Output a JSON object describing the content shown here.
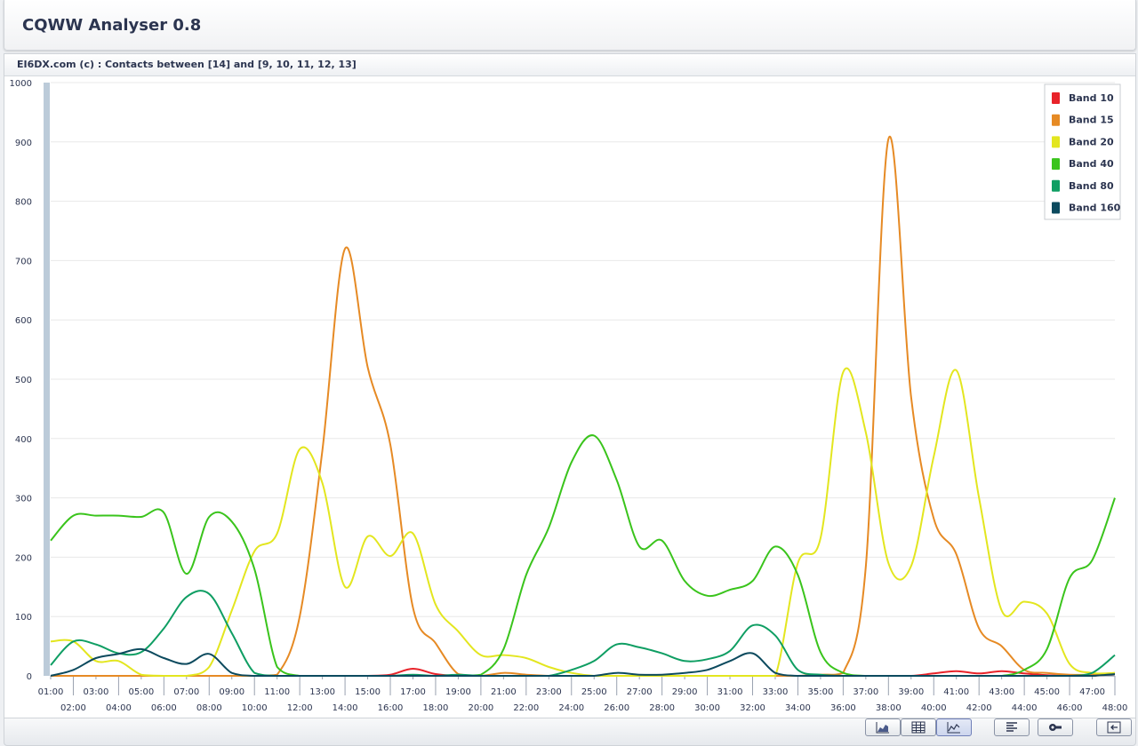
{
  "app": {
    "title": "CQWW Analyser 0.8"
  },
  "panel": {
    "title": "EI6DX.com (c) : Contacts between [14] and [9, 10, 11, 12, 13]"
  },
  "colors": {
    "band10": "#e8232a",
    "band15": "#e68a24",
    "band20": "#e3e61f",
    "band40": "#3ac41c",
    "band80": "#0f9e63",
    "band160": "#0c4a5e",
    "scrollbar": "#bccbd9",
    "grid": "#e8e8e8"
  },
  "toolbar": {
    "icons": [
      "area-chart-icon",
      "table-icon",
      "line-chart-icon",
      "align-left-icon",
      "wrench-icon",
      "exit-icon"
    ],
    "active": "line-chart-icon"
  },
  "chart_data": {
    "type": "line",
    "title": "EI6DX.com (c) : Contacts between [14] and [9, 10, 11, 12, 13]",
    "xlabel": "",
    "ylabel": "",
    "ylim": [
      0,
      1000
    ],
    "yticks": [
      0,
      100,
      200,
      300,
      400,
      500,
      600,
      700,
      800,
      900,
      1000
    ],
    "grid": true,
    "legend_position": "top-right",
    "x": [
      "01:00",
      "02:00",
      "03:00",
      "04:00",
      "05:00",
      "06:00",
      "07:00",
      "08:00",
      "09:00",
      "10:00",
      "11:00",
      "12:00",
      "13:00",
      "14:00",
      "15:00",
      "16:00",
      "17:00",
      "18:00",
      "19:00",
      "20:00",
      "21:00",
      "22:00",
      "23:00",
      "24:00",
      "25:00",
      "26:00",
      "27:00",
      "28:00",
      "29:00",
      "30:00",
      "31:00",
      "32:00",
      "33:00",
      "34:00",
      "35:00",
      "36:00",
      "37:00",
      "38:00",
      "39:00",
      "40:00",
      "41:00",
      "42:00",
      "43:00",
      "44:00",
      "45:00",
      "46:00",
      "47:00",
      "48:00"
    ],
    "series": [
      {
        "name": "Band 10",
        "color": "#e8232a",
        "values": [
          0,
          0,
          0,
          0,
          0,
          0,
          0,
          0,
          0,
          0,
          0,
          0,
          0,
          0,
          0,
          2,
          12,
          3,
          0,
          0,
          0,
          0,
          0,
          0,
          0,
          0,
          0,
          0,
          0,
          0,
          0,
          0,
          0,
          0,
          0,
          0,
          0,
          0,
          0,
          4,
          8,
          4,
          8,
          4,
          1,
          0,
          0,
          3
        ]
      },
      {
        "name": "Band 15",
        "color": "#e68a24",
        "values": [
          0,
          0,
          0,
          0,
          0,
          0,
          0,
          0,
          0,
          0,
          2,
          100,
          380,
          720,
          520,
          390,
          115,
          55,
          3,
          0,
          5,
          2,
          0,
          0,
          0,
          0,
          0,
          0,
          0,
          0,
          0,
          0,
          0,
          0,
          2,
          5,
          185,
          905,
          470,
          265,
          205,
          80,
          50,
          10,
          5,
          2,
          2,
          5
        ]
      },
      {
        "name": "Band 20",
        "color": "#e3e61f",
        "values": [
          58,
          58,
          25,
          25,
          2,
          0,
          0,
          15,
          110,
          210,
          240,
          382,
          325,
          150,
          235,
          202,
          240,
          120,
          75,
          35,
          35,
          30,
          15,
          5,
          0,
          0,
          0,
          0,
          0,
          0,
          0,
          0,
          0,
          190,
          232,
          512,
          410,
          190,
          185,
          370,
          515,
          300,
          110,
          125,
          105,
          20,
          5,
          5
        ]
      },
      {
        "name": "Band 40",
        "color": "#3ac41c",
        "values": [
          228,
          270,
          270,
          270,
          268,
          275,
          172,
          268,
          260,
          180,
          15,
          0,
          0,
          0,
          0,
          0,
          0,
          0,
          0,
          2,
          45,
          170,
          250,
          360,
          405,
          330,
          218,
          228,
          160,
          135,
          145,
          160,
          218,
          170,
          40,
          5,
          0,
          0,
          0,
          0,
          0,
          0,
          0,
          10,
          45,
          165,
          195,
          300
        ]
      },
      {
        "name": "Band 80",
        "color": "#0f9e63",
        "values": [
          18,
          58,
          53,
          38,
          40,
          80,
          133,
          138,
          72,
          5,
          0,
          0,
          0,
          0,
          0,
          0,
          2,
          0,
          2,
          0,
          0,
          0,
          0,
          10,
          25,
          53,
          48,
          38,
          25,
          28,
          42,
          85,
          68,
          10,
          2,
          0,
          0,
          0,
          0,
          0,
          0,
          0,
          0,
          0,
          0,
          0,
          5,
          35
        ]
      },
      {
        "name": "Band 160",
        "color": "#0c4a5e",
        "values": [
          0,
          10,
          30,
          37,
          45,
          30,
          20,
          37,
          5,
          0,
          0,
          0,
          0,
          0,
          0,
          0,
          0,
          0,
          0,
          0,
          0,
          0,
          0,
          0,
          0,
          5,
          2,
          2,
          5,
          10,
          25,
          38,
          5,
          0,
          0,
          0,
          0,
          0,
          0,
          0,
          0,
          0,
          0,
          0,
          0,
          0,
          0,
          3
        ]
      }
    ]
  }
}
